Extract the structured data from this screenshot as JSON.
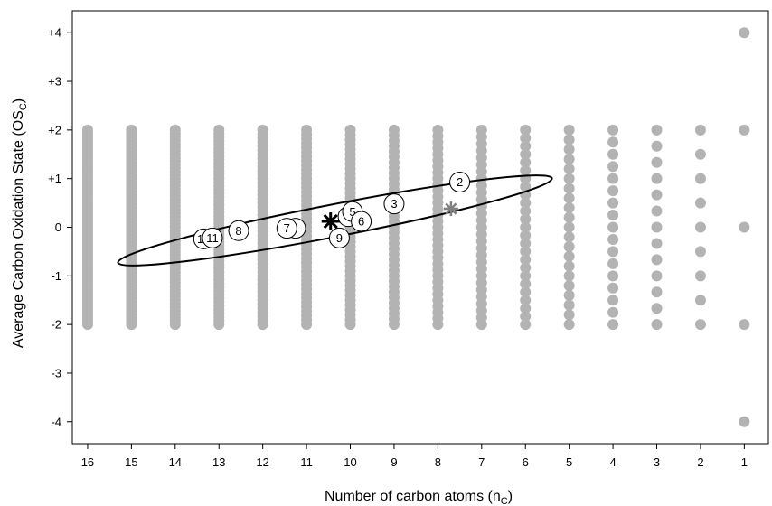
{
  "chart_data": {
    "type": "scatter",
    "title": "",
    "xlabel": "Number of carbon atoms (n",
    "xlabel_sub": "C",
    "xlabel_tail": ")",
    "ylabel": "Average Carbon Oxidation State (OS",
    "ylabel_sub": "C",
    "ylabel_tail": ")",
    "x_reversed": true,
    "xlim": [
      16.35,
      0.45
    ],
    "ylim": [
      -4.45,
      4.45
    ],
    "x_ticks": [
      16,
      15,
      14,
      13,
      12,
      11,
      10,
      9,
      8,
      7,
      6,
      5,
      4,
      3,
      2,
      1
    ],
    "x_tick_labels": [
      "16",
      "15",
      "14",
      "13",
      "12",
      "11",
      "10",
      "9",
      "8",
      "7",
      "6",
      "5",
      "4",
      "3",
      "2",
      "1"
    ],
    "y_ticks": [
      4,
      3,
      2,
      1,
      0,
      -1,
      -2,
      -3,
      -4
    ],
    "y_tick_labels": [
      "+4",
      "+3",
      "+2",
      "+1",
      "0",
      "-1",
      "-2",
      "-3",
      "-4"
    ],
    "grid": false,
    "colors": {
      "possible_states": "#b3b3b3",
      "marker_outline": "#000000",
      "gray_asterisk": "#7f7f7f"
    },
    "possible_states": {
      "description_series": "possible OSc for each nC",
      "rule": "OSc = k / nC for integer k with -2*nC <= k <= 2*nC (for nC >= 2 plus nC=1 spans -4..+4)",
      "n_values": [
        16,
        15,
        14,
        13,
        12,
        11,
        10,
        9,
        8,
        7,
        6,
        5,
        4,
        3,
        2,
        1
      ]
    },
    "numbered_markers": [
      {
        "label": "1",
        "x": 10.05,
        "y": 0.22
      },
      {
        "label": "2",
        "x": 7.5,
        "y": 0.93
      },
      {
        "label": "3",
        "x": 9.0,
        "y": 0.48
      },
      {
        "label": "4",
        "x": 11.25,
        "y": -0.02
      },
      {
        "label": "5",
        "x": 9.95,
        "y": 0.32
      },
      {
        "label": "6",
        "x": 9.75,
        "y": 0.12
      },
      {
        "label": "7",
        "x": 11.45,
        "y": -0.02
      },
      {
        "label": "8",
        "x": 12.55,
        "y": -0.07
      },
      {
        "label": "9",
        "x": 10.25,
        "y": -0.22
      },
      {
        "label": "10",
        "x": 13.35,
        "y": -0.24
      },
      {
        "label": "11",
        "x": 13.15,
        "y": -0.22
      }
    ],
    "asterisks": [
      {
        "name": "black-asterisk",
        "x": 10.45,
        "y": 0.12,
        "color": "#000000"
      },
      {
        "name": "gray-asterisk",
        "x": 7.7,
        "y": 0.38,
        "color": "#7f7f7f"
      }
    ],
    "ellipse": {
      "center_x": 10.35,
      "center_y": 0.14,
      "semi_major_nC": 5.05,
      "semi_minor_os": 0.22,
      "rotation_deg": -11.0
    }
  }
}
